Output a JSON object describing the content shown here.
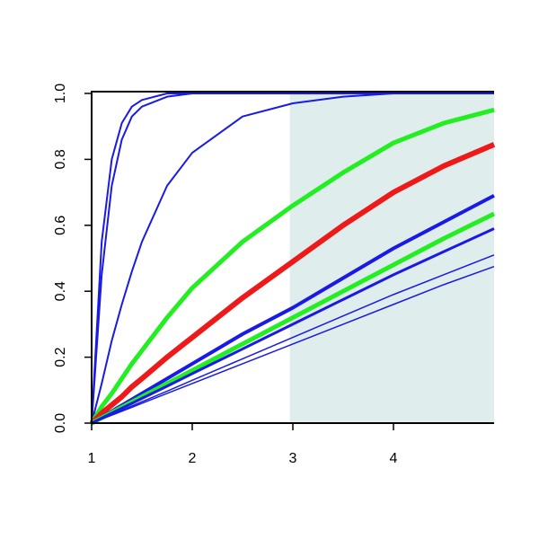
{
  "chart_data": {
    "type": "line",
    "x": [
      1,
      1.1,
      1.2,
      1.3,
      1.4,
      1.5,
      1.75,
      2,
      2.5,
      3,
      3.5,
      4,
      4.5,
      5
    ],
    "xlim": [
      1,
      5
    ],
    "xticks": [
      1,
      2,
      3,
      4
    ],
    "ylim": [
      0,
      1
    ],
    "yticks": [
      {
        "value": 0,
        "label": "0.0"
      },
      {
        "value": 0.2,
        "label": "0.2"
      },
      {
        "value": 0.4,
        "label": "0.4"
      },
      {
        "value": 0.6,
        "label": "0.6"
      },
      {
        "value": 0.8,
        "label": "0.8"
      },
      {
        "value": 1,
        "label": "1.0"
      }
    ],
    "highlight": {
      "xmin": 2.97,
      "xmax": 5,
      "color": "#e0eded"
    },
    "series": [
      {
        "color": "#1a1ae6",
        "width": 2,
        "values": [
          0,
          0.55,
          0.8,
          0.91,
          0.96,
          0.98,
          1,
          1,
          1,
          1,
          1,
          1,
          1,
          1
        ]
      },
      {
        "color": "#1a1ae6",
        "width": 2,
        "values": [
          0,
          0.45,
          0.72,
          0.86,
          0.93,
          0.96,
          0.99,
          1,
          1,
          1,
          1,
          1,
          1,
          1
        ]
      },
      {
        "color": "#1a1ae6",
        "width": 2,
        "values": [
          0,
          0.12,
          0.25,
          0.36,
          0.46,
          0.55,
          0.72,
          0.82,
          0.93,
          0.97,
          0.99,
          1,
          1,
          1
        ]
      },
      {
        "color": "#22ee22",
        "width": 5,
        "values": [
          0,
          0.05,
          0.09,
          0.135,
          0.18,
          0.22,
          0.32,
          0.41,
          0.55,
          0.66,
          0.76,
          0.85,
          0.91,
          0.95
        ]
      },
      {
        "color": "#ee1a1a",
        "width": 6,
        "values": [
          0,
          0.03,
          0.055,
          0.08,
          0.11,
          0.135,
          0.2,
          0.26,
          0.38,
          0.49,
          0.6,
          0.7,
          0.78,
          0.845
        ]
      },
      {
        "color": "#1a1ae6",
        "width": 4,
        "values": [
          0,
          0.018,
          0.036,
          0.054,
          0.072,
          0.09,
          0.135,
          0.18,
          0.27,
          0.35,
          0.44,
          0.53,
          0.61,
          0.69
        ]
      },
      {
        "color": "#22ee22",
        "width": 5,
        "values": [
          0,
          0.016,
          0.032,
          0.048,
          0.064,
          0.08,
          0.12,
          0.16,
          0.24,
          0.32,
          0.4,
          0.48,
          0.56,
          0.635
        ]
      },
      {
        "color": "#1a1ae6",
        "width": 3,
        "values": [
          0,
          0.015,
          0.03,
          0.045,
          0.06,
          0.075,
          0.112,
          0.15,
          0.225,
          0.3,
          0.375,
          0.45,
          0.52,
          0.59
        ]
      },
      {
        "color": "#1a1ae6",
        "width": 1.5,
        "values": [
          0,
          0.013,
          0.026,
          0.039,
          0.052,
          0.065,
          0.097,
          0.13,
          0.195,
          0.26,
          0.325,
          0.39,
          0.45,
          0.51
        ]
      },
      {
        "color": "#1a1ae6",
        "width": 1.5,
        "values": [
          0,
          0.012,
          0.024,
          0.036,
          0.048,
          0.06,
          0.09,
          0.12,
          0.18,
          0.24,
          0.3,
          0.36,
          0.42,
          0.475
        ]
      }
    ]
  }
}
